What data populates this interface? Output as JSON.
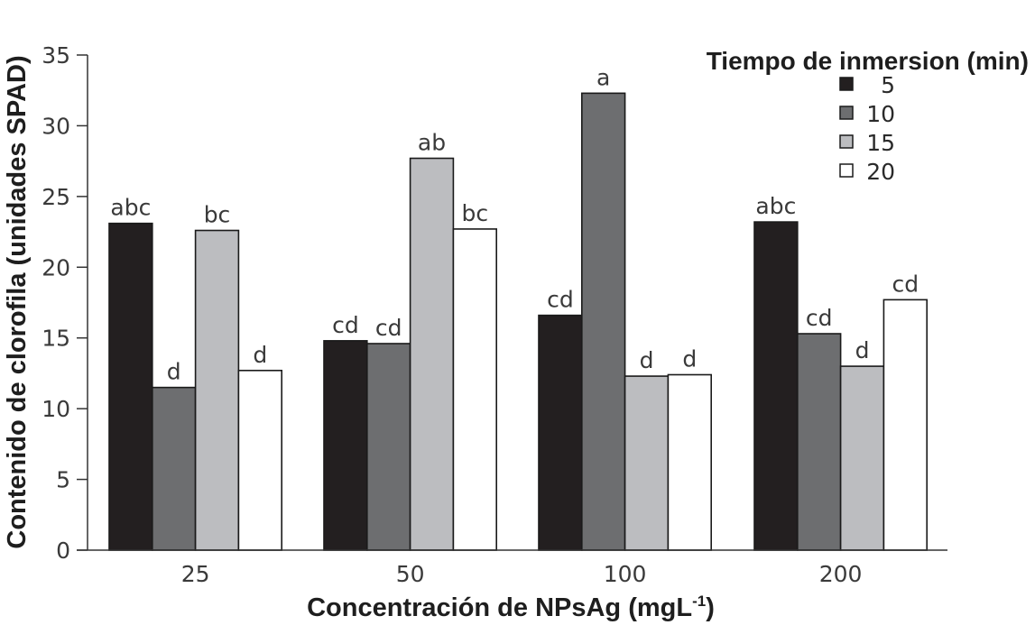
{
  "chart_data": {
    "type": "bar",
    "title": "",
    "xlabel": "Concentración de NPsAg (mgL",
    "xlabel_sup": "-1",
    "xlabel_end": ")",
    "ylabel": "Contenido de clorofila (unidades SPAD)",
    "ylim": [
      0,
      35
    ],
    "yticks": [
      0,
      5,
      10,
      15,
      20,
      25,
      30,
      35
    ],
    "ytick_labels": [
      "0",
      "5",
      "10",
      "15",
      "20",
      "25",
      "30",
      "35"
    ],
    "categories": [
      "25",
      "50",
      "100",
      "200"
    ],
    "legend_title": "Tiempo de inmersion (min)",
    "legend_position": "top-right",
    "series": [
      {
        "name": "5",
        "color": "#231f20",
        "values": [
          23.1,
          14.8,
          16.6,
          23.2
        ],
        "labels": [
          "abc",
          "cd",
          "cd",
          "abc"
        ]
      },
      {
        "name": "10",
        "color": "#6d6e70",
        "values": [
          11.5,
          14.6,
          32.3,
          15.3
        ],
        "labels": [
          "d",
          "cd",
          "a",
          "cd"
        ]
      },
      {
        "name": "15",
        "color": "#bcbdc0",
        "values": [
          22.6,
          27.7,
          12.3,
          13.0
        ],
        "labels": [
          "bc",
          "ab",
          "d",
          "d"
        ]
      },
      {
        "name": "20",
        "color": "#ffffff",
        "values": [
          12.7,
          22.7,
          12.4,
          17.7
        ],
        "labels": [
          "d",
          "bc",
          "d",
          "cd"
        ]
      }
    ]
  }
}
